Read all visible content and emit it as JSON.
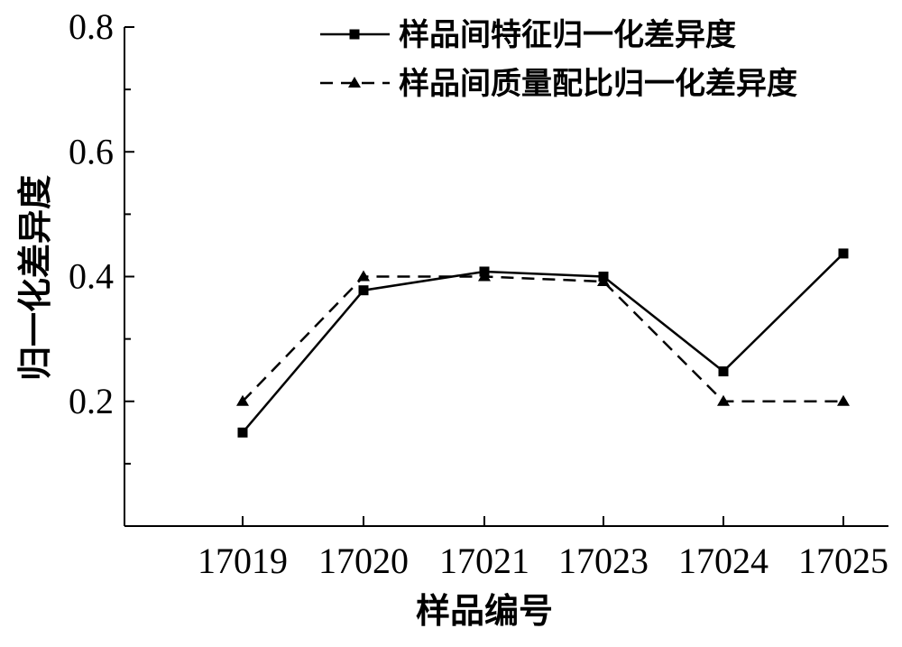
{
  "chart_data": {
    "type": "line",
    "categories": [
      "17019",
      "17020",
      "17021",
      "17023",
      "17024",
      "17025"
    ],
    "series": [
      {
        "name": "样品间特征归一化差异度",
        "values": [
          0.15,
          0.378,
          0.408,
          0.4,
          0.248,
          0.437
        ],
        "marker": "square",
        "dash": "solid",
        "color": "#000000"
      },
      {
        "name": "样品间质量配比归一化差异度",
        "values": [
          0.2,
          0.4,
          0.4,
          0.392,
          0.2,
          0.2
        ],
        "marker": "triangle",
        "dash": "dashed",
        "color": "#000000"
      }
    ],
    "xlabel": "样品编号",
    "ylabel": "归一化差异度",
    "ylim": [
      0,
      0.8
    ],
    "yticks": [
      "0.2",
      "0.4",
      "0.6",
      "0.8"
    ],
    "grid": false,
    "legend_position": "top-right"
  }
}
